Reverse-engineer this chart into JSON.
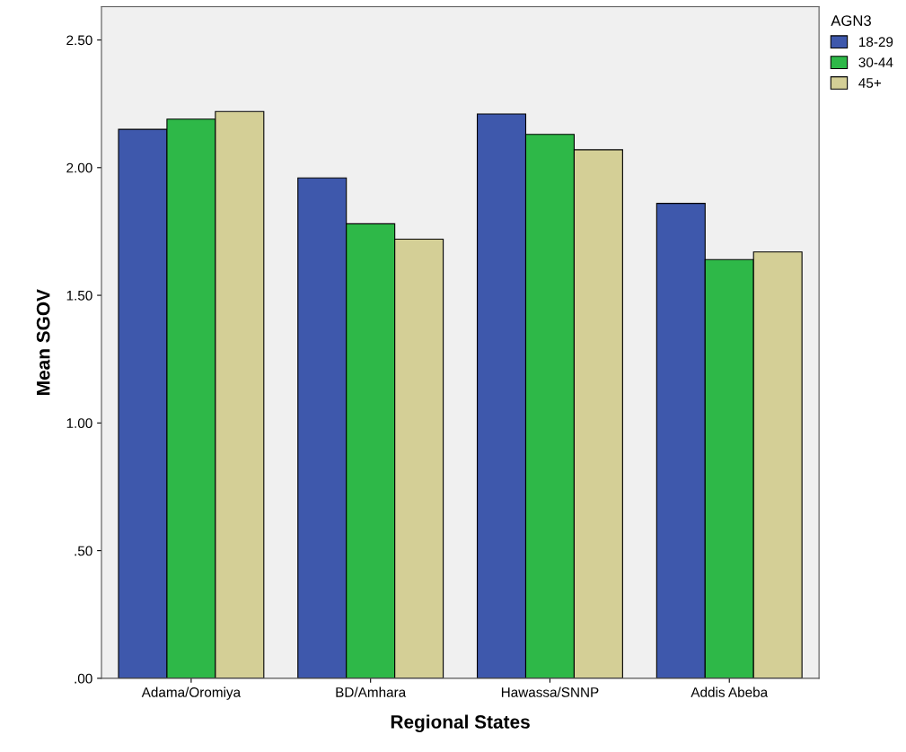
{
  "chart_data": {
    "type": "bar",
    "xlabel": "Regional States",
    "ylabel": "Mean SGOV",
    "legend_title": "AGN3",
    "legend": "top right",
    "categories": [
      "Adama/Oromiya",
      "BD/Amhara",
      "Hawassa/SNNP",
      "Addis Abeba"
    ],
    "series": [
      {
        "name": "18-29",
        "color": "#3e58ac",
        "values": [
          2.15,
          1.96,
          2.21,
          1.86
        ]
      },
      {
        "name": "30-44",
        "color": "#2eb848",
        "values": [
          2.19,
          1.78,
          2.13,
          1.64
        ]
      },
      {
        "name": "45+",
        "color": "#d4cf96",
        "values": [
          2.22,
          1.72,
          2.07,
          1.67
        ]
      }
    ],
    "ylim": [
      0,
      2.63
    ],
    "yticks": [
      {
        "value": 0,
        "label": ".00"
      },
      {
        "value": 0.5,
        "label": ".50"
      },
      {
        "value": 1,
        "label": "1.00"
      },
      {
        "value": 1.5,
        "label": "1.50"
      },
      {
        "value": 2,
        "label": "2.00"
      },
      {
        "value": 2.5,
        "label": "2.50"
      }
    ],
    "grid": false
  }
}
